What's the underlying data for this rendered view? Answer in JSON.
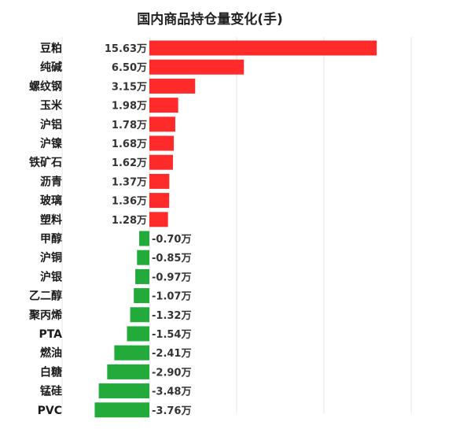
{
  "chart_data": {
    "type": "bar",
    "orientation": "horizontal",
    "title": "国内商品持仓量变化(手)",
    "xlabel": "",
    "ylabel": "",
    "unit": "万",
    "grid": true,
    "legend": false,
    "categories": [
      "豆粕",
      "纯碱",
      "螺纹钢",
      "玉米",
      "沪铝",
      "沪镍",
      "铁矿石",
      "沥青",
      "玻璃",
      "塑料",
      "甲醇",
      "沪铜",
      "沪银",
      "乙二醇",
      "聚丙烯",
      "PTA",
      "燃油",
      "白糖",
      "锰硅",
      "PVC"
    ],
    "values": [
      15.63,
      6.5,
      3.15,
      1.98,
      1.78,
      1.68,
      1.62,
      1.37,
      1.36,
      1.28,
      -0.7,
      -0.85,
      -0.97,
      -1.07,
      -1.32,
      -1.54,
      -2.41,
      -2.9,
      -3.48,
      -3.76
    ],
    "value_labels": [
      "15.63万",
      "6.50万",
      "3.15万",
      "1.98万",
      "1.78万",
      "1.68万",
      "1.62万",
      "1.37万",
      "1.36万",
      "1.28万",
      "-0.70万",
      "-0.85万",
      "-0.97万",
      "-1.07万",
      "-1.32万",
      "-1.54万",
      "-2.41万",
      "-2.90万",
      "-3.48万",
      "-3.76万"
    ],
    "xlim": [
      -6,
      18
    ],
    "colors": {
      "positive": "#ff2a2a",
      "negative": "#22aa3a",
      "grid": "#e6e6e6"
    }
  }
}
